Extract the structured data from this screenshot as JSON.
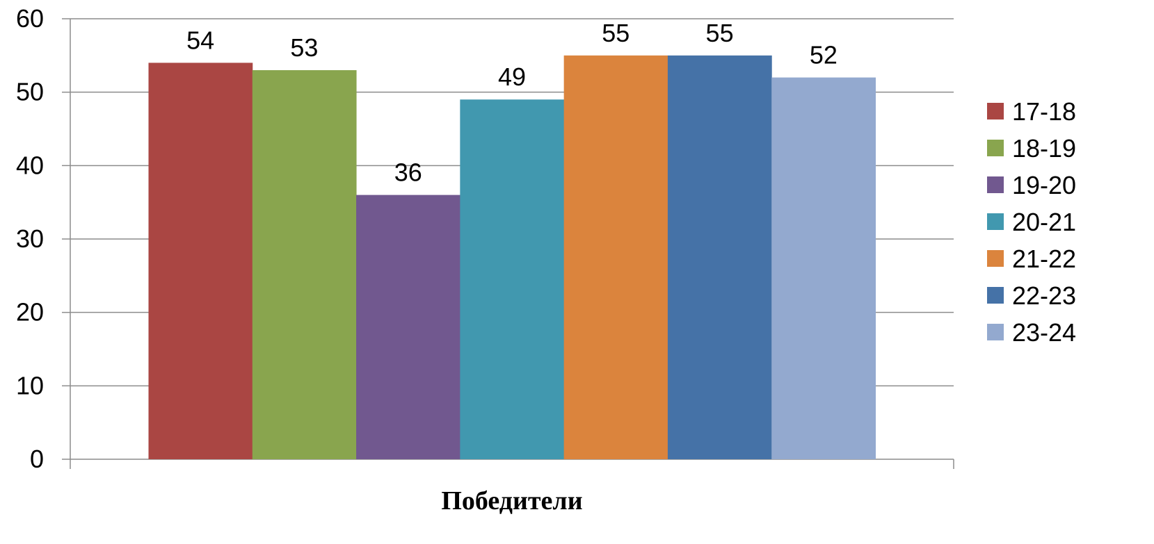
{
  "chart_data": {
    "type": "bar",
    "categories": [
      "Победители"
    ],
    "series": [
      {
        "name": "17-18",
        "values": [
          54
        ],
        "color": "#AA4643"
      },
      {
        "name": "18-19",
        "values": [
          53
        ],
        "color": "#89A54E"
      },
      {
        "name": "19-20",
        "values": [
          36
        ],
        "color": "#71588F"
      },
      {
        "name": "20-21",
        "values": [
          49
        ],
        "color": "#4198AF"
      },
      {
        "name": "21-22",
        "values": [
          55
        ],
        "color": "#DB843D"
      },
      {
        "name": "22-23",
        "values": [
          55
        ],
        "color": "#4572A7"
      },
      {
        "name": "23-24",
        "values": [
          52
        ],
        "color": "#93A9CF"
      }
    ],
    "title": "",
    "xlabel": "",
    "ylabel": "",
    "ylim": [
      0,
      60
    ],
    "yticks": [
      "0",
      "10",
      "20",
      "30",
      "40",
      "50",
      "60"
    ],
    "grid": true,
    "data_labels": true,
    "legend_position": "right"
  }
}
